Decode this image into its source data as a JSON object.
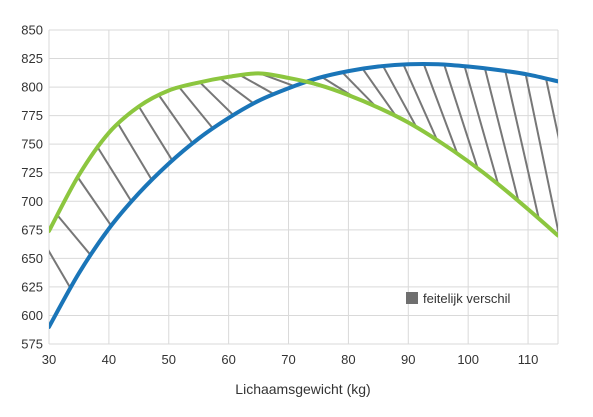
{
  "chart_data": {
    "type": "line",
    "xlabel": "Lichaamsgewicht (kg)",
    "ylabel": "",
    "xlim": [
      30,
      115
    ],
    "ylim": [
      575,
      850
    ],
    "x_ticks": [
      30,
      40,
      50,
      60,
      70,
      80,
      90,
      100,
      110
    ],
    "y_ticks": [
      575,
      600,
      625,
      650,
      675,
      700,
      725,
      750,
      775,
      800,
      825,
      850
    ],
    "grid": true,
    "series": [
      {
        "color": "#1a75b8",
        "x": [
          30,
          35,
          40,
          45,
          50,
          55,
          60,
          65,
          70,
          75,
          80,
          85,
          90,
          95,
          100,
          105,
          110,
          115
        ],
        "y": [
          590,
          637,
          676,
          707,
          733,
          755,
          773,
          788,
          799,
          808,
          814,
          818,
          820,
          820,
          818,
          815,
          811,
          805
        ]
      },
      {
        "color": "#8cc63f",
        "x": [
          30,
          35,
          40,
          45,
          50,
          55,
          60,
          65,
          70,
          75,
          80,
          85,
          90,
          95,
          100,
          105,
          110,
          115
        ],
        "y": [
          674,
          723,
          760,
          783,
          797,
          804,
          809,
          812,
          808,
          802,
          793,
          782,
          769,
          753,
          735,
          715,
          693,
          670
        ]
      }
    ],
    "fill_between": {
      "hatch_color": "#777777",
      "label": "feitelijk verschil"
    },
    "legend_position": "bottom-right"
  }
}
